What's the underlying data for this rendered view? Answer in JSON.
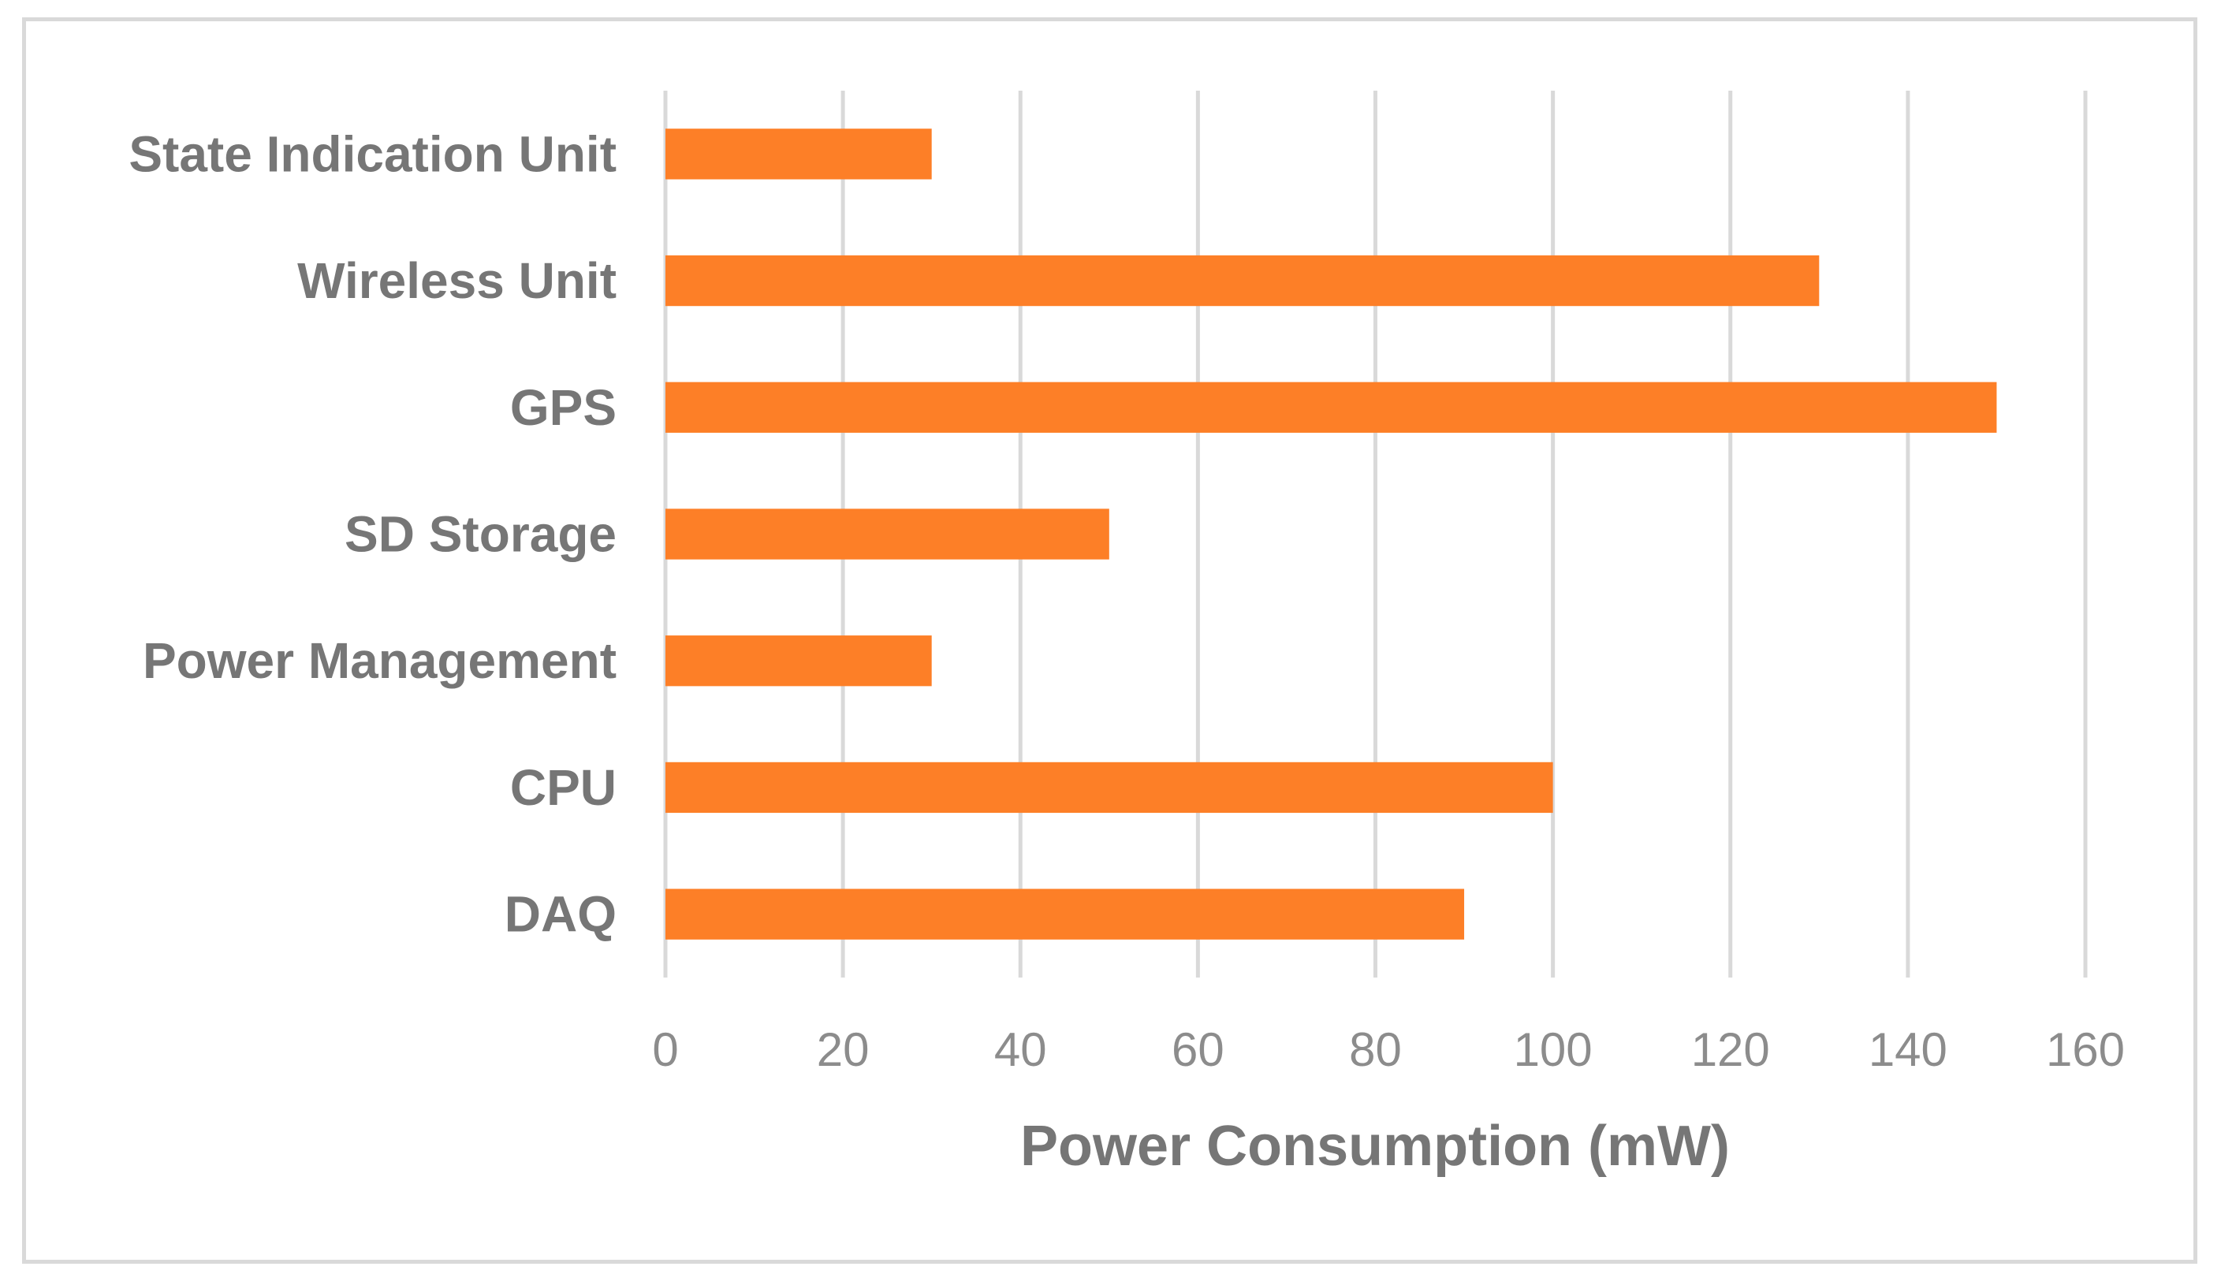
{
  "chart_data": {
    "type": "bar",
    "orientation": "horizontal",
    "title": "",
    "xlabel": "Power Consumption (mW)",
    "ylabel": "",
    "categories": [
      "DAQ",
      "CPU",
      "Power Management",
      "SD Storage",
      "GPS",
      "Wireless Unit",
      "State Indication Unit"
    ],
    "values": [
      90,
      100,
      30,
      50,
      150,
      130,
      30
    ],
    "xlim": [
      0,
      160
    ],
    "xticks": [
      "0",
      "20",
      "40",
      "60",
      "80",
      "100",
      "120",
      "140",
      "160"
    ],
    "grid": true,
    "legend": "none",
    "colors": {
      "bar": "#fd7f27",
      "grid": "#d9d9d9",
      "frame": "#d9d9d9"
    }
  }
}
